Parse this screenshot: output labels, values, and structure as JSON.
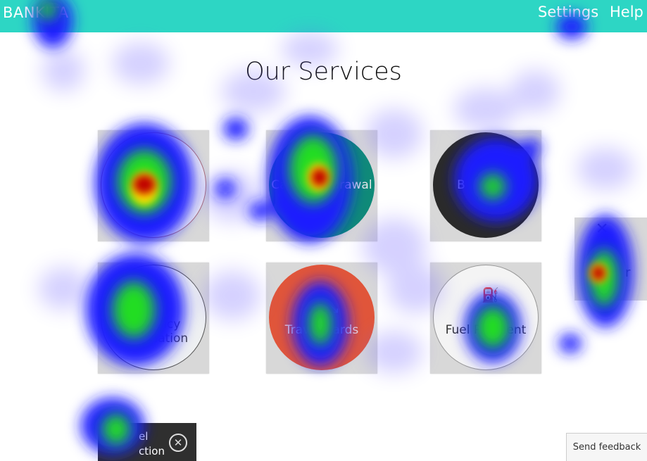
{
  "header": {
    "brand": "BANKITA",
    "nav": {
      "settings": "Settings",
      "help": "Help"
    }
  },
  "main": {
    "title": "Our Services",
    "services": [
      {
        "label": "",
        "icon": ""
      },
      {
        "label": "Cash Withdrawal",
        "icon": ""
      },
      {
        "label": "B",
        "icon": ""
      },
      {
        "label": "Currency Information",
        "icon": "flag-icon"
      },
      {
        "label": "Travel Cards",
        "icon": "arrow-icon"
      },
      {
        "label": "Fuel Payment",
        "icon": "fuel-icon"
      }
    ],
    "edge_tile": {
      "label": "r",
      "icon": "cross-icon"
    }
  },
  "chat": {
    "line1": "el",
    "line2": "ction",
    "close_icon": "close-circle-icon"
  },
  "feedback": {
    "label": "Send feedback"
  },
  "colors": {
    "topbar": "#2dd6c4",
    "teal": "#0f8a78",
    "orange": "#e0553a",
    "dark": "#2a2a2a"
  }
}
